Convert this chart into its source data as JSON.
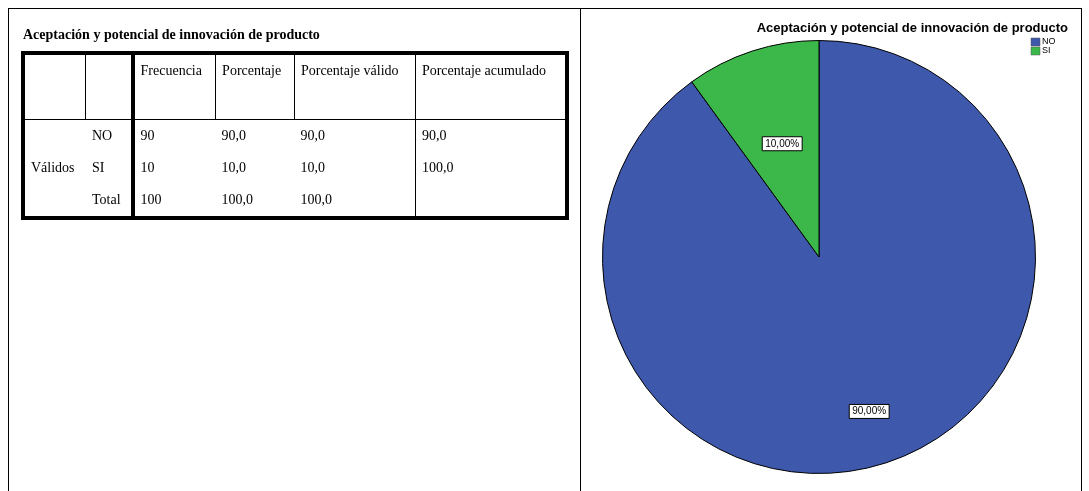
{
  "chart_data": [
    {
      "type": "other",
      "title": "Aceptación y potencial de innovación de producto",
      "ylabel": "Válidos",
      "categories": [
        "Frecuencia",
        "Porcentaje",
        "Porcentaje válido",
        "Porcentaje acumulado"
      ],
      "y_categories": [
        "NO",
        "SI",
        "Total"
      ],
      "cell_labels": [
        [
          "90",
          "90,0",
          "90,0",
          "90,0"
        ],
        [
          "10",
          "10,0",
          "10,0",
          "100,0"
        ],
        [
          "100",
          "100,0",
          "100,0",
          null
        ]
      ]
    },
    {
      "type": "pie",
      "title": "Aceptación y potencial de innovación de producto",
      "categories": [
        "NO",
        "SI"
      ],
      "values": [
        90,
        10
      ],
      "colors": [
        "#3e58ac",
        "#3cb84a"
      ],
      "legend": "top right",
      "value_labels": [
        "90,00%",
        "10,00%"
      ]
    }
  ]
}
